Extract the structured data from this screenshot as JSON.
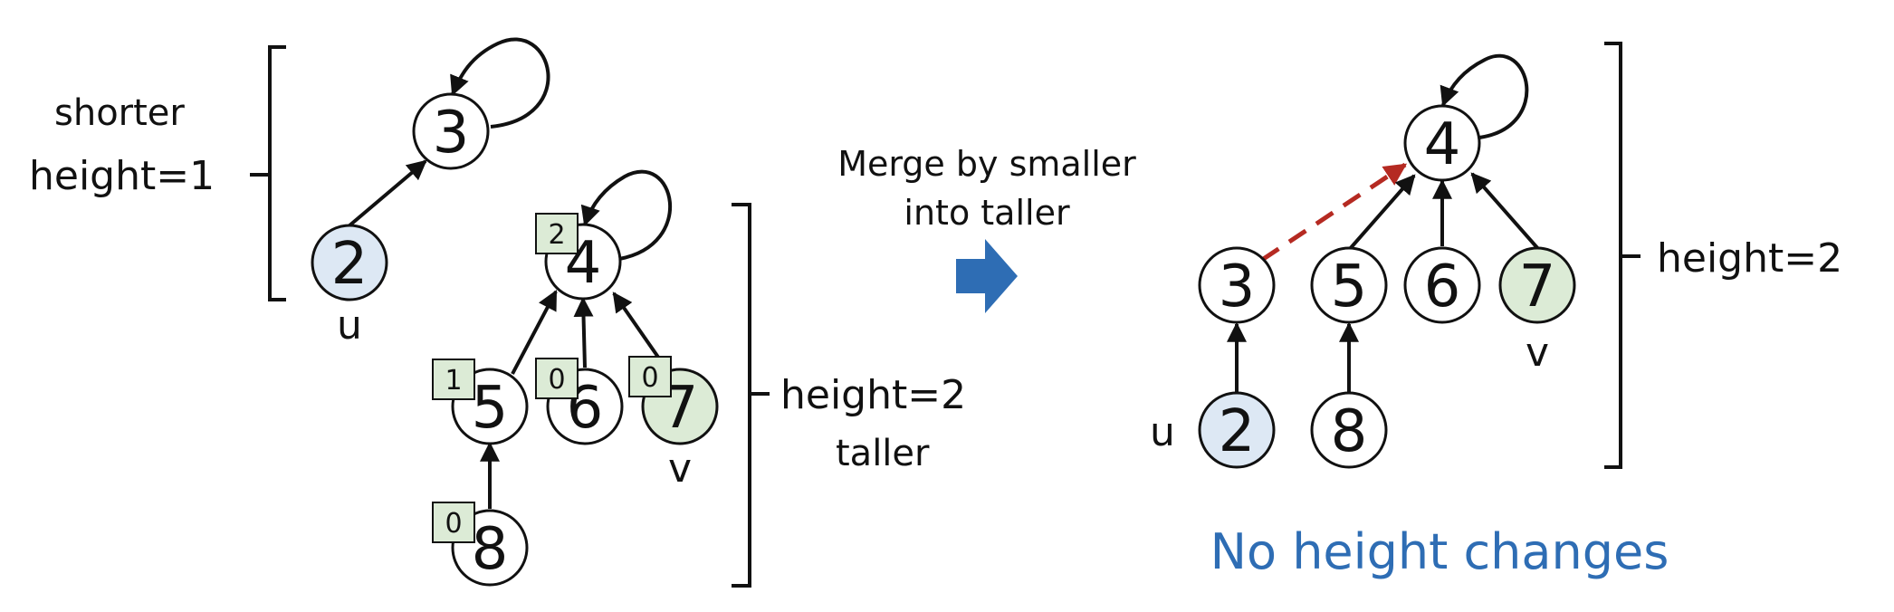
{
  "colors": {
    "u_fill": "#dde8f4",
    "v_fill": "#dcebd6",
    "rank_box": "#dcebd6",
    "plain_fill": "#ffffff",
    "merge_edge": "#b52a22",
    "arrow_fill": "#2e6db4",
    "conclusion": "#2e6db4"
  },
  "before": {
    "short_tree": {
      "label_top": "shorter",
      "label_height": "height=1",
      "root": "3",
      "child": "2",
      "child_var": "u"
    },
    "tall_tree": {
      "root": "4",
      "root_rank": "2",
      "children": [
        {
          "id": "5",
          "rank": "1"
        },
        {
          "id": "6",
          "rank": "0"
        },
        {
          "id": "7",
          "rank": "0"
        }
      ],
      "grandchild": "8",
      "grandchild_rank": "0",
      "v_var": "v",
      "label_height": "height=2",
      "label_bottom": "taller"
    }
  },
  "merge": {
    "line1": "Merge by smaller",
    "line2": "into taller",
    "arrow_icon": "right-arrow-icon"
  },
  "after": {
    "root": "4",
    "children": [
      "3",
      "5",
      "6",
      "7"
    ],
    "grandchildren": {
      "under_3": "2",
      "under_5": "8"
    },
    "u_var": "u",
    "v_var": "v",
    "label_height": "height=2",
    "conclusion": "No height changes"
  }
}
